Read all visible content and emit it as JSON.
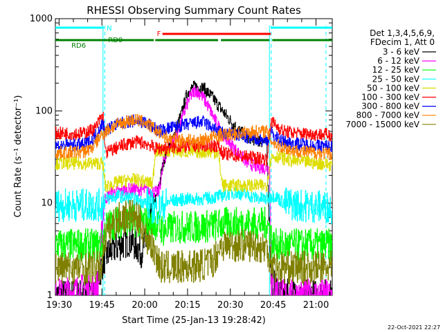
{
  "chart_data": {
    "type": "line",
    "title": "RHESSI Observing Summary Count Rates",
    "xlabel": "Start Time (25-Jan-13 19:28:42)",
    "ylabel": "Count Rate (s⁻¹ detector⁻¹)",
    "yscale": "log",
    "ylim": [
      1,
      1000
    ],
    "xlim_minutes": [
      0,
      97
    ],
    "x_unit": "minutes after 19:28:42",
    "x_ticks": [
      {
        "m": 1.3,
        "label": "19:30"
      },
      {
        "m": 16.3,
        "label": "19:45"
      },
      {
        "m": 31.3,
        "label": "20:00"
      },
      {
        "m": 46.3,
        "label": "20:15"
      },
      {
        "m": 61.3,
        "label": "20:30"
      },
      {
        "m": 76.3,
        "label": "20:45"
      },
      {
        "m": 91.3,
        "label": "21:00"
      }
    ],
    "y_ticks": [
      {
        "v": 1,
        "label": "1"
      },
      {
        "v": 10,
        "label": "10"
      },
      {
        "v": 100,
        "label": "100"
      },
      {
        "v": 1000,
        "label": "1000"
      }
    ],
    "legend_header": [
      "Det 1,3,4,5,6,9,",
      "FDecim 1, Att 0"
    ],
    "legend_position": "right",
    "footer_date": "22-Oct-2021 22:27",
    "flags": [
      {
        "label": "N",
        "color": "#00ffff",
        "segments": [
          [
            0,
            17
          ],
          [
            75.5,
            97
          ]
        ],
        "level": 0
      },
      {
        "label": "F",
        "color": "#ff0000",
        "segments": [
          [
            37.5,
            75.5
          ]
        ],
        "level": 1
      },
      {
        "label": "RD0",
        "color": "#008000",
        "segments": [
          [
            0,
            16.7
          ],
          [
            16.7,
            34.5
          ],
          [
            35,
            57
          ],
          [
            58,
            75
          ],
          [
            76,
            97
          ]
        ],
        "level": 2,
        "label_at": 18.5
      },
      {
        "label": "RD6",
        "color": "#008000",
        "segments": [],
        "level": 3,
        "label_at": 9
      }
    ],
    "vlines": [
      {
        "m": 16.7,
        "style": "solid"
      },
      {
        "m": 17.3,
        "style": "dashed"
      },
      {
        "m": 75.0,
        "style": "solid"
      },
      {
        "m": 75.6,
        "style": "dashed"
      },
      {
        "m": 94.8,
        "style": "dashed"
      }
    ],
    "series": [
      {
        "name": "3 - 6 keV",
        "color": "#000000",
        "points": [
          [
            0,
            1.0
          ],
          [
            14,
            1.0
          ],
          [
            16,
            2
          ],
          [
            17,
            2.5
          ],
          [
            20,
            3.2
          ],
          [
            26,
            4
          ],
          [
            28,
            3.5
          ],
          [
            30,
            3
          ],
          [
            32,
            4
          ],
          [
            34,
            8
          ],
          [
            36,
            14
          ],
          [
            38,
            30
          ],
          [
            41,
            50
          ],
          [
            44,
            90
          ],
          [
            46,
            150
          ],
          [
            47,
            170
          ],
          [
            49,
            185
          ],
          [
            52,
            175
          ],
          [
            55,
            140
          ],
          [
            58,
            105
          ],
          [
            61,
            80
          ],
          [
            64,
            62
          ],
          [
            66,
            55
          ],
          [
            69,
            50
          ],
          [
            72,
            47
          ],
          [
            74,
            45
          ],
          [
            75.5,
            1.5
          ],
          [
            77,
            1.2
          ],
          [
            80,
            1.0
          ],
          [
            97,
            1.0
          ]
        ]
      },
      {
        "name": "6 - 12 keV",
        "color": "#ff00ff",
        "points": [
          [
            0,
            1.0
          ],
          [
            13,
            1.2
          ],
          [
            15,
            1.3
          ],
          [
            17,
            11
          ],
          [
            20,
            13
          ],
          [
            26,
            14
          ],
          [
            30,
            14
          ],
          [
            33,
            13.5
          ],
          [
            36,
            13
          ],
          [
            37,
            18
          ],
          [
            38,
            30
          ],
          [
            41,
            45
          ],
          [
            43,
            60
          ],
          [
            45,
            95
          ],
          [
            47,
            140
          ],
          [
            49,
            168
          ],
          [
            51,
            150
          ],
          [
            53,
            120
          ],
          [
            55,
            90
          ],
          [
            58,
            60
          ],
          [
            61,
            45
          ],
          [
            64,
            35
          ],
          [
            67,
            28
          ],
          [
            70,
            25
          ],
          [
            73,
            24
          ],
          [
            75,
            24
          ],
          [
            75.6,
            1.3
          ],
          [
            80,
            1.0
          ],
          [
            97,
            1.0
          ]
        ]
      },
      {
        "name": "12 - 25 keV",
        "color": "#00ff00",
        "points": [
          [
            0,
            3.5
          ],
          [
            16.5,
            3.5
          ],
          [
            17.5,
            5.5
          ],
          [
            20,
            6
          ],
          [
            25,
            6.5
          ],
          [
            30,
            6.3
          ],
          [
            35,
            6
          ],
          [
            38,
            5
          ],
          [
            42,
            5.5
          ],
          [
            45,
            5.5
          ],
          [
            50,
            5.5
          ],
          [
            55,
            5.7
          ],
          [
            57,
            5.8
          ],
          [
            58.5,
            6
          ],
          [
            61,
            6
          ],
          [
            65,
            6
          ],
          [
            70,
            6
          ],
          [
            74,
            6
          ],
          [
            75.3,
            5
          ],
          [
            76,
            3.5
          ],
          [
            97,
            3.5
          ]
        ]
      },
      {
        "name": "25 - 50 keV",
        "color": "#00ffff",
        "points": [
          [
            0,
            9.5
          ],
          [
            16.5,
            9.5
          ],
          [
            17.5,
            11
          ],
          [
            22,
            12
          ],
          [
            28,
            11
          ],
          [
            32,
            10
          ],
          [
            35,
            8.5
          ],
          [
            37,
            9
          ],
          [
            40,
            10.5
          ],
          [
            45,
            11
          ],
          [
            50,
            11
          ],
          [
            55,
            11.5
          ],
          [
            58,
            12
          ],
          [
            62,
            13
          ],
          [
            66,
            12.5
          ],
          [
            70,
            11.5
          ],
          [
            74,
            11
          ],
          [
            75.5,
            12
          ],
          [
            77,
            12
          ],
          [
            80,
            10
          ],
          [
            85,
            9.5
          ],
          [
            97,
            9
          ]
        ]
      },
      {
        "name": "50 - 100 keV",
        "color": "#dddd00",
        "points": [
          [
            0,
            27
          ],
          [
            16.5,
            27
          ],
          [
            17.5,
            15
          ],
          [
            22,
            17
          ],
          [
            27,
            18
          ],
          [
            32,
            17
          ],
          [
            34,
            16
          ],
          [
            35,
            37
          ],
          [
            40,
            37
          ],
          [
            45,
            36
          ],
          [
            50,
            36
          ],
          [
            55,
            36
          ],
          [
            57,
            35
          ],
          [
            58.5,
            15.5
          ],
          [
            62,
            15.5
          ],
          [
            66,
            15.5
          ],
          [
            70,
            15.5
          ],
          [
            74,
            15.5
          ],
          [
            75.5,
            32
          ],
          [
            78,
            32
          ],
          [
            82,
            29
          ],
          [
            87,
            28
          ],
          [
            92,
            27
          ],
          [
            97,
            26
          ]
        ]
      },
      {
        "name": "100 - 300 keV",
        "color": "#ff0000",
        "points": [
          [
            0,
            57
          ],
          [
            10,
            57
          ],
          [
            14,
            65
          ],
          [
            16,
            85
          ],
          [
            16.7,
            88
          ],
          [
            17.5,
            35
          ],
          [
            20,
            38
          ],
          [
            24,
            43
          ],
          [
            28,
            46
          ],
          [
            31,
            45
          ],
          [
            33,
            43
          ],
          [
            35,
            39
          ],
          [
            40,
            40
          ],
          [
            45,
            41
          ],
          [
            50,
            42
          ],
          [
            55,
            42
          ],
          [
            57,
            42
          ],
          [
            58.5,
            35
          ],
          [
            62,
            33
          ],
          [
            66,
            32
          ],
          [
            70,
            31
          ],
          [
            74,
            30
          ],
          [
            75.5,
            78
          ],
          [
            77,
            70
          ],
          [
            80,
            60
          ],
          [
            85,
            57
          ],
          [
            90,
            56
          ],
          [
            97,
            55
          ]
        ]
      },
      {
        "name": "300 - 800 keV",
        "color": "#0000ff",
        "points": [
          [
            0,
            42
          ],
          [
            10,
            43
          ],
          [
            13,
            48
          ],
          [
            16,
            70
          ],
          [
            16.7,
            72
          ],
          [
            17.5,
            62
          ],
          [
            21,
            70
          ],
          [
            25,
            76
          ],
          [
            28,
            78
          ],
          [
            31,
            75
          ],
          [
            34,
            68
          ],
          [
            36,
            60
          ],
          [
            40,
            65
          ],
          [
            45,
            70
          ],
          [
            50,
            75
          ],
          [
            52,
            76
          ],
          [
            55,
            65
          ],
          [
            58,
            58
          ],
          [
            62,
            56
          ],
          [
            66,
            52
          ],
          [
            70,
            50
          ],
          [
            74,
            48
          ],
          [
            75.5,
            58
          ],
          [
            77,
            52
          ],
          [
            80,
            46
          ],
          [
            85,
            44
          ],
          [
            90,
            42
          ],
          [
            97,
            41
          ]
        ]
      },
      {
        "name": "800 - 7000 keV",
        "color": "#ff8000",
        "points": [
          [
            0,
            35
          ],
          [
            10,
            36
          ],
          [
            13,
            40
          ],
          [
            16,
            55
          ],
          [
            16.7,
            57
          ],
          [
            17.5,
            60
          ],
          [
            21,
            70
          ],
          [
            25,
            77
          ],
          [
            28,
            80
          ],
          [
            31,
            76
          ],
          [
            34,
            66
          ],
          [
            37,
            55
          ],
          [
            40,
            50
          ],
          [
            45,
            48
          ],
          [
            50,
            47
          ],
          [
            55,
            52
          ],
          [
            58,
            55
          ],
          [
            62,
            56
          ],
          [
            66,
            58
          ],
          [
            70,
            60
          ],
          [
            74,
            60
          ],
          [
            75.5,
            48
          ],
          [
            78,
            42
          ],
          [
            82,
            38
          ],
          [
            87,
            36
          ],
          [
            92,
            35
          ],
          [
            97,
            34
          ]
        ]
      },
      {
        "name": "7000 - 15000 keV",
        "color": "#808000",
        "points": [
          [
            0,
            2
          ],
          [
            16,
            2
          ],
          [
            17,
            4
          ],
          [
            20,
            6
          ],
          [
            23,
            7
          ],
          [
            26,
            7.5
          ],
          [
            28,
            7
          ],
          [
            30,
            6
          ],
          [
            32,
            4
          ],
          [
            33,
            4
          ],
          [
            37,
            2
          ],
          [
            42,
            2
          ],
          [
            50,
            2.1
          ],
          [
            55,
            2.3
          ],
          [
            58,
            3.5
          ],
          [
            62,
            3.5
          ],
          [
            66,
            3.5
          ],
          [
            70,
            3.5
          ],
          [
            74,
            3.2
          ],
          [
            75.3,
            2.5
          ],
          [
            77,
            2
          ],
          [
            82,
            2
          ],
          [
            90,
            2
          ],
          [
            97,
            2
          ]
        ]
      }
    ]
  }
}
